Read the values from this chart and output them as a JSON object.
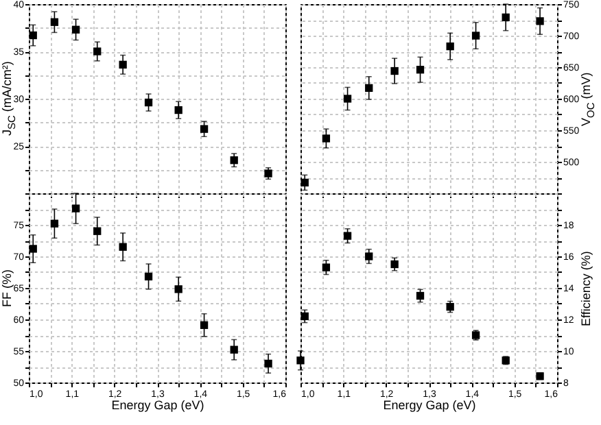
{
  "chart_data": [
    {
      "type": "scatter",
      "ylabel": "J$_{SC}$ (mA/cm²)",
      "x": [
        1.01,
        1.06,
        1.11,
        1.16,
        1.22,
        1.28,
        1.35,
        1.41,
        1.48,
        1.56
      ],
      "series": [
        {
          "color": "#000000",
          "values": [
            36.7,
            38.1,
            37.3,
            35.0,
            33.6,
            29.6,
            28.8,
            26.8,
            23.5,
            22.1
          ],
          "errors": [
            1.1,
            1.1,
            1.1,
            1.0,
            1.0,
            0.9,
            0.9,
            0.8,
            0.7,
            0.6
          ]
        }
      ],
      "xlim": [
        1.0,
        1.6
      ],
      "xticks": [
        {
          "value": 1.0,
          "label": null
        },
        {
          "value": 1.05,
          "label": null
        },
        {
          "value": 1.1,
          "label": null
        },
        {
          "value": 1.15,
          "label": null
        },
        {
          "value": 1.2,
          "label": null
        },
        {
          "value": 1.25,
          "label": null
        },
        {
          "value": 1.3,
          "label": null
        },
        {
          "value": 1.35,
          "label": null
        },
        {
          "value": 1.4,
          "label": null
        },
        {
          "value": 1.45,
          "label": null
        },
        {
          "value": 1.5,
          "label": null
        },
        {
          "value": 1.55,
          "label": null
        },
        {
          "value": 1.6,
          "label": null
        }
      ],
      "ylim": [
        20,
        40
      ],
      "yticks": [
        {
          "value": 20,
          "label": null
        },
        {
          "value": 22.5,
          "label": null
        },
        25,
        {
          "value": 27.5,
          "label": null
        },
        30,
        {
          "value": 32.5,
          "label": null
        },
        35,
        {
          "value": 37.5,
          "label": null
        },
        40
      ],
      "tick_labels": "y",
      "grid": true,
      "marker": "square"
    },
    {
      "type": "scatter",
      "y2label": "V$_{OC}$ (mV)",
      "x": [
        1.01,
        1.06,
        1.11,
        1.16,
        1.22,
        1.28,
        1.35,
        1.41,
        1.48,
        1.56
      ],
      "series": [
        {
          "color": "#000000",
          "axis": "y2",
          "values": [
            467,
            537,
            600,
            617,
            644,
            646,
            683,
            700,
            729,
            723
          ],
          "errors": [
            12,
            15,
            18,
            18,
            20,
            20,
            21,
            21,
            21,
            21
          ]
        }
      ],
      "xlim": [
        1.0,
        1.6
      ],
      "xticks": [
        {
          "value": 1.0,
          "label": null
        },
        {
          "value": 1.05,
          "label": null
        },
        {
          "value": 1.1,
          "label": null
        },
        {
          "value": 1.15,
          "label": null
        },
        {
          "value": 1.2,
          "label": null
        },
        {
          "value": 1.25,
          "label": null
        },
        {
          "value": 1.3,
          "label": null
        },
        {
          "value": 1.35,
          "label": null
        },
        {
          "value": 1.4,
          "label": null
        },
        {
          "value": 1.45,
          "label": null
        },
        {
          "value": 1.5,
          "label": null
        },
        {
          "value": 1.55,
          "label": null
        },
        {
          "value": 1.6,
          "label": null
        }
      ],
      "y2lim": [
        450,
        750
      ],
      "y2ticks": [
        {
          "value": 450,
          "label": null
        },
        {
          "value": 475,
          "label": null
        },
        500,
        {
          "value": 525,
          "label": null
        },
        550,
        {
          "value": 575,
          "label": null
        },
        600,
        {
          "value": 625,
          "label": null
        },
        650,
        {
          "value": 675,
          "label": null
        },
        700,
        {
          "value": 725,
          "label": null
        },
        750
      ],
      "tick_labels": "y",
      "grid": true,
      "marker": "square"
    },
    {
      "type": "scatter",
      "xlabel": "Energy Gap (eV)",
      "ylabel": "FF (%)",
      "x": [
        1.01,
        1.06,
        1.11,
        1.16,
        1.22,
        1.28,
        1.35,
        1.41,
        1.48,
        1.56
      ],
      "series": [
        {
          "color": "#000000",
          "values": [
            71.2,
            75.2,
            77.6,
            74.0,
            71.5,
            66.8,
            64.8,
            59.1,
            55.2,
            53.0
          ],
          "errors": [
            2.2,
            2.3,
            2.4,
            2.2,
            2.2,
            2.0,
            1.9,
            1.8,
            1.6,
            1.5
          ]
        }
      ],
      "xlim": [
        1.0,
        1.6
      ],
      "xticks": [
        {
          "value": 1.0,
          "label": "1,0"
        },
        {
          "value": 1.05,
          "label": null
        },
        {
          "value": 1.1,
          "label": "1,1"
        },
        {
          "value": 1.15,
          "label": null
        },
        {
          "value": 1.2,
          "label": "1,2"
        },
        {
          "value": 1.25,
          "label": null
        },
        {
          "value": 1.3,
          "label": "1,3"
        },
        {
          "value": 1.35,
          "label": null
        },
        {
          "value": 1.4,
          "label": "1,4"
        },
        {
          "value": 1.45,
          "label": null
        },
        {
          "value": 1.5,
          "label": "1,5"
        },
        {
          "value": 1.55,
          "label": null
        },
        {
          "value": 1.6,
          "label": "1,6"
        }
      ],
      "ylim": [
        50,
        80
      ],
      "yticks": [
        50,
        {
          "value": 52.5,
          "label": null
        },
        55,
        {
          "value": 57.5,
          "label": null
        },
        60,
        {
          "value": 62.5,
          "label": null
        },
        65,
        {
          "value": 67.5,
          "label": null
        },
        70,
        {
          "value": 72.5,
          "label": null
        },
        75,
        {
          "value": 77.5,
          "label": null
        },
        {
          "value": 80,
          "label": null
        }
      ],
      "grid": true,
      "marker": "square"
    },
    {
      "type": "scatter",
      "xlabel": "Energy Gap (eV)",
      "y2label": "Efficiency (%)",
      "x": [
        1.0,
        1.01,
        1.06,
        1.11,
        1.16,
        1.22,
        1.28,
        1.35,
        1.41,
        1.48,
        1.56
      ],
      "series": [
        {
          "color": "#000000",
          "axis": "y2",
          "values": [
            9.4,
            12.2,
            15.3,
            17.3,
            16.0,
            15.5,
            13.5,
            12.8,
            11.0,
            9.4,
            8.4
          ],
          "errors": [
            0.6,
            0.4,
            0.45,
            0.45,
            0.45,
            0.4,
            0.4,
            0.35,
            0.3,
            0.25,
            0.2
          ]
        }
      ],
      "xlim": [
        1.0,
        1.6
      ],
      "xticks": [
        {
          "value": 1.0,
          "label": "1,0"
        },
        {
          "value": 1.05,
          "label": null
        },
        {
          "value": 1.1,
          "label": "1,1"
        },
        {
          "value": 1.15,
          "label": null
        },
        {
          "value": 1.2,
          "label": "1,2"
        },
        {
          "value": 1.25,
          "label": null
        },
        {
          "value": 1.3,
          "label": "1,3"
        },
        {
          "value": 1.35,
          "label": null
        },
        {
          "value": 1.4,
          "label": "1,4"
        },
        {
          "value": 1.45,
          "label": null
        },
        {
          "value": 1.5,
          "label": "1,5"
        },
        {
          "value": 1.55,
          "label": null
        },
        {
          "value": 1.6,
          "label": "1,6"
        }
      ],
      "y2lim": [
        8,
        20
      ],
      "y2ticks": [
        8,
        {
          "value": 9,
          "label": null
        },
        10,
        {
          "value": 11,
          "label": null
        },
        12,
        {
          "value": 13,
          "label": null
        },
        14,
        {
          "value": 15,
          "label": null
        },
        16,
        {
          "value": 17,
          "label": null
        },
        18,
        {
          "value": 19,
          "label": null
        },
        {
          "value": 20,
          "label": null
        }
      ],
      "grid": true,
      "marker": "square"
    }
  ]
}
